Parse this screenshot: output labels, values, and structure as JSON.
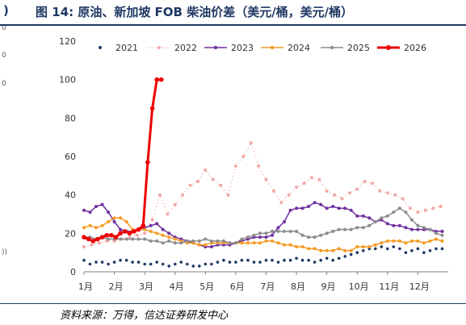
{
  "title": {
    "lead": ")",
    "text": "图 14:  原油、新加坡 FOB 柴油价差（美元/桶，美元/桶）"
  },
  "source": "资料来源：万得，信达证券研发中心",
  "left_edge_marks": [
    "0",
    "0",
    "0",
    "))"
  ],
  "colors": {
    "2021": "#1f3864",
    "2022": "#f4a6a6",
    "2023": "#7030a0",
    "2024": "#f59a23",
    "2025": "#8c8c8c",
    "2026": "#ee0000",
    "axis": "#808080",
    "title": "#1f3864"
  },
  "chart_data": {
    "type": "line",
    "title": "",
    "xlabel": "",
    "ylabel": "",
    "ylim": [
      0,
      120
    ],
    "yticks": [
      0,
      20,
      40,
      60,
      80,
      100,
      120
    ],
    "categories": [
      "1月",
      "2月",
      "3月",
      "4月",
      "5月",
      "6月",
      "7月",
      "8月",
      "9月",
      "10月",
      "11月",
      "12月"
    ],
    "grid": false,
    "legend_position": "top",
    "series": [
      {
        "name": "2021",
        "style": "dots",
        "x": [
          1.0,
          1.2,
          1.4,
          1.6,
          1.8,
          2.0,
          2.2,
          2.4,
          2.6,
          2.8,
          3.0,
          3.2,
          3.4,
          3.6,
          3.8,
          4.0,
          4.2,
          4.4,
          4.6,
          4.8,
          5.0,
          5.2,
          5.4,
          5.6,
          5.8,
          6.0,
          6.2,
          6.4,
          6.6,
          6.8,
          7.0,
          7.2,
          7.4,
          7.6,
          7.8,
          8.0,
          8.2,
          8.4,
          8.6,
          8.8,
          9.0,
          9.2,
          9.4,
          9.6,
          9.8,
          10.0,
          10.2,
          10.4,
          10.6,
          10.8,
          11.0,
          11.2,
          11.4,
          11.6,
          11.8,
          12.0,
          12.2,
          12.4,
          12.6,
          12.8
        ],
        "values": [
          6,
          4,
          5,
          5,
          4,
          5,
          6,
          6,
          5,
          5,
          4,
          4,
          5,
          4,
          3,
          4,
          5,
          4,
          3,
          3,
          4,
          4,
          5,
          6,
          5,
          5,
          6,
          6,
          5,
          5,
          6,
          6,
          5,
          6,
          6,
          7,
          6,
          6,
          5,
          6,
          7,
          6,
          7,
          8,
          9,
          10,
          11,
          12,
          12,
          13,
          12,
          13,
          12,
          10,
          11,
          12,
          10,
          11,
          12,
          12
        ]
      },
      {
        "name": "2022",
        "style": "line-markers",
        "x": [
          1.0,
          1.25,
          1.5,
          1.75,
          2.0,
          2.25,
          2.5,
          2.75,
          3.0,
          3.25,
          3.5,
          3.75,
          4.0,
          4.25,
          4.5,
          4.75,
          5.0,
          5.25,
          5.5,
          5.75,
          6.0,
          6.25,
          6.5,
          6.75,
          7.0,
          7.25,
          7.5,
          7.75,
          8.0,
          8.25,
          8.5,
          8.75,
          9.0,
          9.25,
          9.5,
          9.75,
          10.0,
          10.25,
          10.5,
          10.75,
          11.0,
          11.25,
          11.5,
          11.75,
          12.0,
          12.25,
          12.5,
          12.75
        ],
        "values": [
          13,
          14,
          15,
          16,
          16,
          17,
          18,
          19,
          20,
          27,
          40,
          30,
          35,
          40,
          45,
          47,
          53,
          48,
          45,
          40,
          55,
          60,
          67,
          55,
          48,
          42,
          36,
          40,
          44,
          46,
          49,
          48,
          42,
          40,
          38,
          41,
          43,
          47,
          46,
          42,
          41,
          40,
          38,
          33,
          31,
          32,
          33,
          34
        ]
      },
      {
        "name": "2023",
        "style": "line-markers",
        "x": [
          1.0,
          1.2,
          1.4,
          1.6,
          1.8,
          2.0,
          2.2,
          2.4,
          2.6,
          2.8,
          3.0,
          3.2,
          3.4,
          3.6,
          3.8,
          4.0,
          4.2,
          4.4,
          4.6,
          4.8,
          5.0,
          5.2,
          5.4,
          5.6,
          5.8,
          6.0,
          6.2,
          6.4,
          6.6,
          6.8,
          7.0,
          7.2,
          7.4,
          7.6,
          7.8,
          8.0,
          8.2,
          8.4,
          8.6,
          8.8,
          9.0,
          9.2,
          9.4,
          9.6,
          9.8,
          10.0,
          10.2,
          10.4,
          10.6,
          10.8,
          11.0,
          11.2,
          11.4,
          11.6,
          11.8,
          12.0,
          12.2,
          12.4,
          12.6,
          12.8
        ],
        "values": [
          32,
          31,
          34,
          35,
          31,
          26,
          22,
          21,
          21,
          22,
          23,
          24,
          25,
          22,
          20,
          18,
          17,
          16,
          15,
          14,
          13,
          13,
          14,
          14,
          14,
          15,
          16,
          17,
          18,
          18,
          18,
          19,
          23,
          26,
          32,
          33,
          33,
          34,
          36,
          35,
          33,
          34,
          33,
          33,
          32,
          29,
          29,
          28,
          26,
          27,
          25,
          24,
          24,
          23,
          22,
          22,
          22,
          22,
          21,
          21
        ]
      },
      {
        "name": "2024",
        "style": "line-markers",
        "x": [
          1.0,
          1.2,
          1.4,
          1.6,
          1.8,
          2.0,
          2.2,
          2.4,
          2.6,
          2.8,
          3.0,
          3.2,
          3.4,
          3.6,
          3.8,
          4.0,
          4.2,
          4.4,
          4.6,
          4.8,
          5.0,
          5.2,
          5.4,
          5.6,
          5.8,
          6.0,
          6.2,
          6.4,
          6.6,
          6.8,
          7.0,
          7.2,
          7.4,
          7.6,
          7.8,
          8.0,
          8.2,
          8.4,
          8.6,
          8.8,
          9.0,
          9.2,
          9.4,
          9.6,
          9.8,
          10.0,
          10.2,
          10.4,
          10.6,
          10.8,
          11.0,
          11.2,
          11.4,
          11.6,
          11.8,
          12.0,
          12.2,
          12.4,
          12.6,
          12.8
        ],
        "values": [
          23,
          24,
          23,
          24,
          26,
          28,
          28,
          26,
          22,
          22,
          22,
          21,
          20,
          19,
          18,
          17,
          16,
          15,
          15,
          14,
          14,
          15,
          15,
          15,
          15,
          15,
          15,
          15,
          15,
          15,
          16,
          16,
          15,
          14,
          14,
          13,
          13,
          12,
          12,
          11,
          11,
          11,
          12,
          11,
          11,
          13,
          13,
          13,
          14,
          15,
          16,
          16,
          16,
          15,
          16,
          16,
          15,
          16,
          17,
          16
        ]
      },
      {
        "name": "2025",
        "style": "line-markers",
        "x": [
          1.0,
          1.2,
          1.4,
          1.6,
          1.8,
          2.0,
          2.2,
          2.4,
          2.6,
          2.8,
          3.0,
          3.2,
          3.4,
          3.6,
          3.8,
          4.0,
          4.2,
          4.4,
          4.6,
          4.8,
          5.0,
          5.2,
          5.4,
          5.6,
          5.8,
          6.0,
          6.2,
          6.4,
          6.6,
          6.8,
          7.0,
          7.2,
          7.4,
          7.6,
          7.8,
          8.0,
          8.2,
          8.4,
          8.6,
          8.8,
          9.0,
          9.2,
          9.4,
          9.6,
          9.8,
          10.0,
          10.2,
          10.4,
          10.6,
          10.8,
          11.0,
          11.2,
          11.4,
          11.6,
          11.8,
          12.0,
          12.2,
          12.4,
          12.6,
          12.8
        ],
        "values": [
          18,
          18,
          17,
          18,
          17,
          17,
          17,
          17,
          17,
          17,
          17,
          16,
          16,
          15,
          16,
          15,
          15,
          16,
          16,
          16,
          17,
          16,
          16,
          16,
          15,
          15,
          17,
          18,
          19,
          20,
          20,
          21,
          21,
          21,
          21,
          21,
          19,
          18,
          18,
          19,
          20,
          21,
          22,
          22,
          22,
          23,
          23,
          24,
          26,
          28,
          29,
          31,
          33,
          31,
          27,
          24,
          23,
          22,
          20,
          19
        ]
      },
      {
        "name": "2026",
        "style": "bold-line",
        "x": [
          1.0,
          1.15,
          1.3,
          1.45,
          1.6,
          1.75,
          1.9,
          2.05,
          2.2,
          2.35,
          2.5,
          2.65,
          2.8,
          2.95,
          3.1,
          3.25,
          3.4,
          3.55
        ],
        "values": [
          18,
          17,
          16,
          17,
          18,
          19,
          19,
          18,
          20,
          21,
          20,
          21,
          22,
          24,
          57,
          85,
          100,
          100
        ]
      }
    ]
  }
}
